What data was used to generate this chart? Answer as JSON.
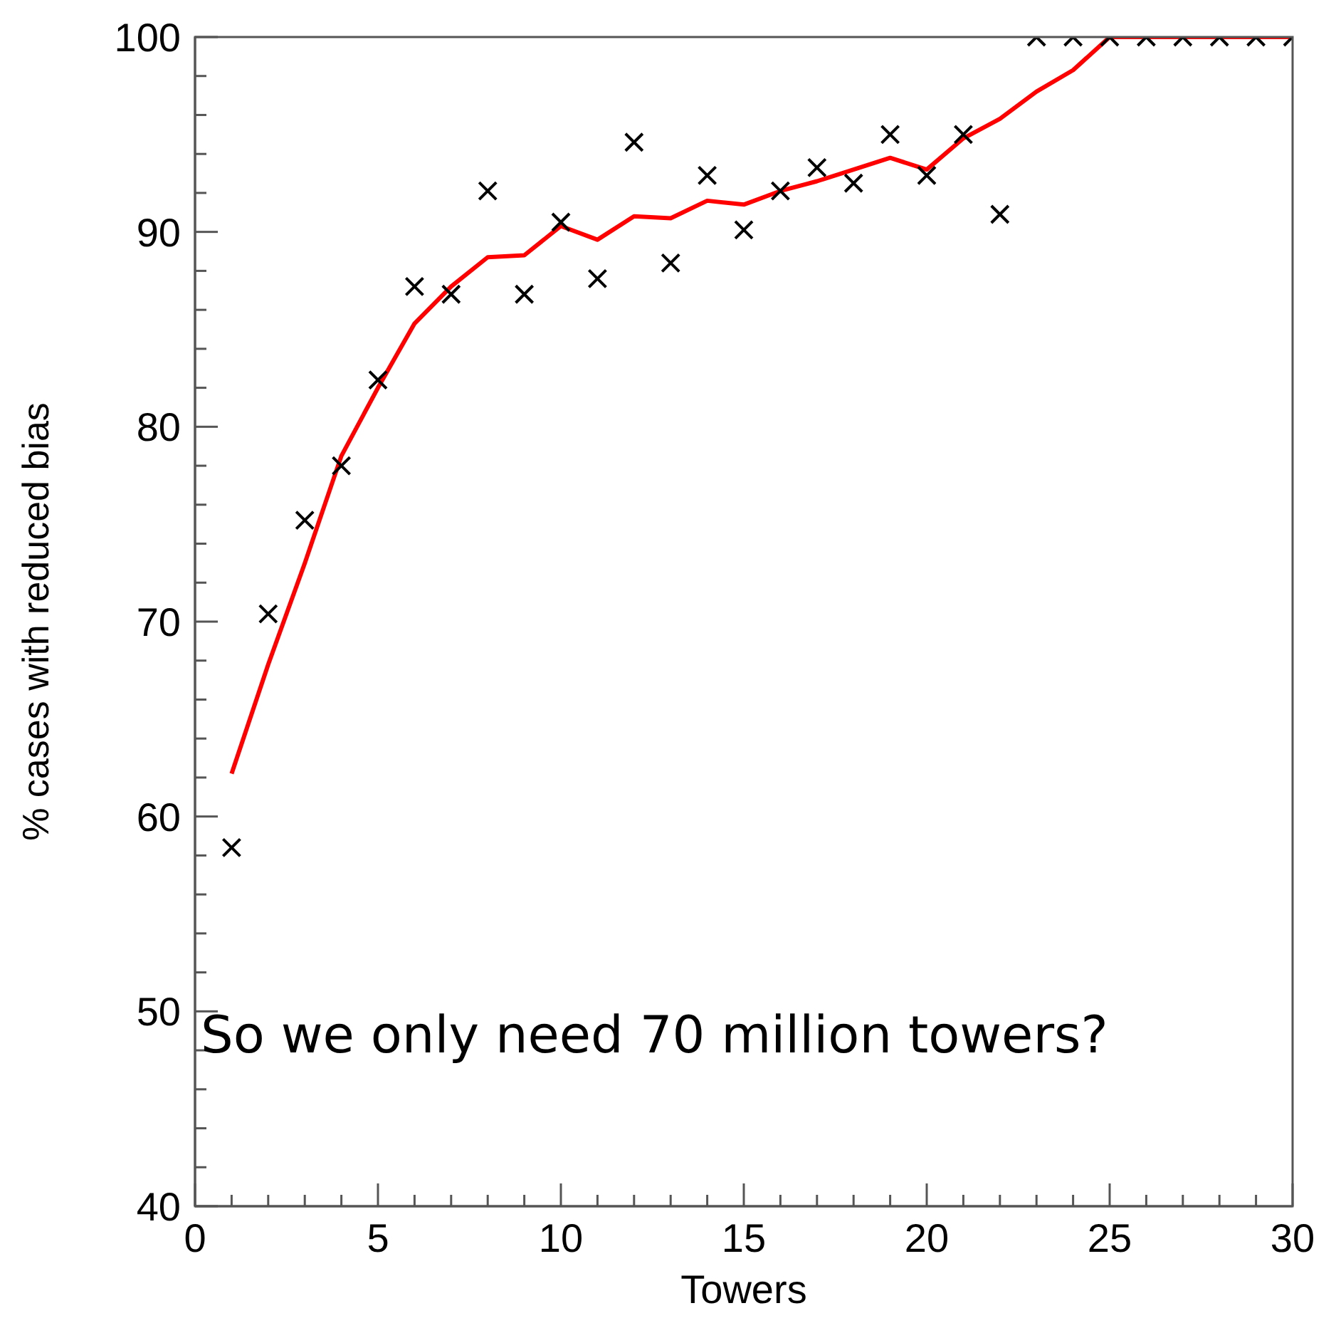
{
  "chart_data": {
    "type": "scatter",
    "xlabel": "Towers",
    "ylabel": "% cases with reduced bias",
    "annotations": [
      "So we only need 70 million towers?"
    ],
    "x": [
      1,
      2,
      3,
      4,
      5,
      6,
      7,
      8,
      9,
      10,
      11,
      12,
      13,
      14,
      15,
      16,
      17,
      18,
      19,
      20,
      21,
      22,
      23,
      24,
      25,
      26,
      27,
      28,
      29,
      30
    ],
    "series": [
      {
        "color": "#000000",
        "marker": "cross",
        "values": [
          58.4,
          70.4,
          75.2,
          78.0,
          82.4,
          87.2,
          86.8,
          92.1,
          86.8,
          90.5,
          87.6,
          94.6,
          88.4,
          92.9,
          90.1,
          92.1,
          93.3,
          92.5,
          95.0,
          92.9,
          95.0,
          90.9,
          100,
          100,
          100,
          100,
          100,
          100,
          100,
          100
        ]
      },
      {
        "type": "line",
        "color": "#ff0000",
        "marker": "none",
        "values": [
          62.2,
          67.8,
          73.0,
          78.5,
          82.0,
          85.3,
          87.2,
          88.7,
          88.8,
          90.3,
          89.6,
          90.8,
          90.7,
          91.6,
          91.4,
          92.1,
          92.6,
          93.2,
          93.8,
          93.2,
          94.8,
          95.8,
          97.2,
          98.3,
          100,
          100,
          100,
          100,
          100,
          100
        ]
      }
    ],
    "xlim": [
      0,
      30
    ],
    "xticks": [
      0,
      {
        "value": 1,
        "label": null
      },
      {
        "value": 2,
        "label": null
      },
      {
        "value": 3,
        "label": null
      },
      {
        "value": 4,
        "label": null
      },
      5,
      {
        "value": 6,
        "label": null
      },
      {
        "value": 7,
        "label": null
      },
      {
        "value": 8,
        "label": null
      },
      {
        "value": 9,
        "label": null
      },
      10,
      {
        "value": 11,
        "label": null
      },
      {
        "value": 12,
        "label": null
      },
      {
        "value": 13,
        "label": null
      },
      {
        "value": 14,
        "label": null
      },
      15,
      {
        "value": 16,
        "label": null
      },
      {
        "value": 17,
        "label": null
      },
      {
        "value": 18,
        "label": null
      },
      {
        "value": 19,
        "label": null
      },
      20,
      {
        "value": 21,
        "label": null
      },
      {
        "value": 22,
        "label": null
      },
      {
        "value": 23,
        "label": null
      },
      {
        "value": 24,
        "label": null
      },
      25,
      {
        "value": 26,
        "label": null
      },
      {
        "value": 27,
        "label": null
      },
      {
        "value": 28,
        "label": null
      },
      {
        "value": 29,
        "label": null
      },
      30
    ],
    "ylim": [
      40,
      100
    ],
    "yticks": [
      40,
      {
        "value": 42,
        "label": null
      },
      {
        "value": 44,
        "label": null
      },
      {
        "value": 46,
        "label": null
      },
      {
        "value": 48,
        "label": null
      },
      50,
      {
        "value": 52,
        "label": null
      },
      {
        "value": 54,
        "label": null
      },
      {
        "value": 56,
        "label": null
      },
      {
        "value": 58,
        "label": null
      },
      60,
      {
        "value": 62,
        "label": null
      },
      {
        "value": 64,
        "label": null
      },
      {
        "value": 66,
        "label": null
      },
      {
        "value": 68,
        "label": null
      },
      70,
      {
        "value": 72,
        "label": null
      },
      {
        "value": 74,
        "label": null
      },
      {
        "value": 76,
        "label": null
      },
      {
        "value": 78,
        "label": null
      },
      80,
      {
        "value": 82,
        "label": null
      },
      {
        "value": 84,
        "label": null
      },
      {
        "value": 86,
        "label": null
      },
      {
        "value": 88,
        "label": null
      },
      90,
      {
        "value": 92,
        "label": null
      },
      {
        "value": 94,
        "label": null
      },
      {
        "value": 96,
        "label": null
      },
      {
        "value": 98,
        "label": null
      },
      100
    ],
    "grid": false
  }
}
